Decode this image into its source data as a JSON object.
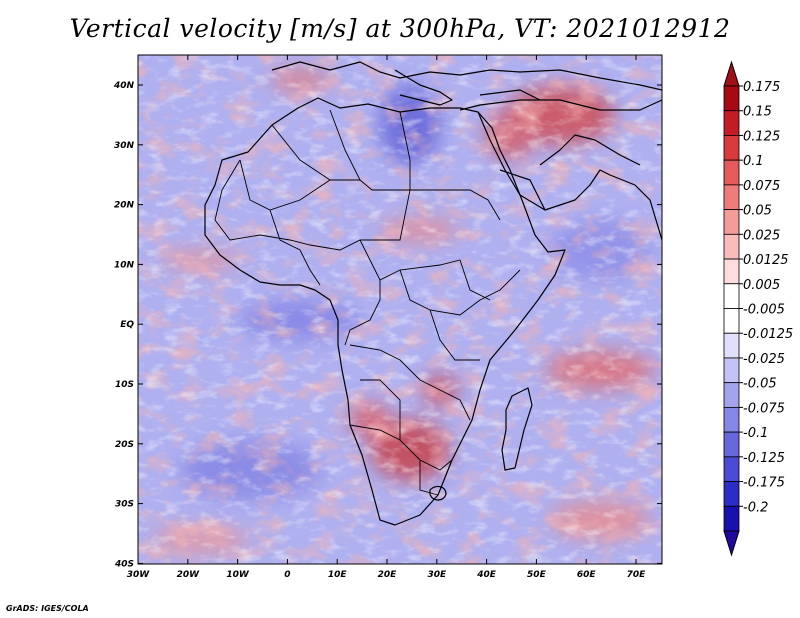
{
  "title": "Vertical velocity [m/s] at 300hPa, VT: 2021012912",
  "footer": "GrADS: IGES/COLA",
  "colors": {
    "ocean_base": "#aeb0f0",
    "land_base": "#c2c2f2",
    "positive_strong": "#b01e22",
    "positive_mid": "#e9787a",
    "negative_mid": "#8f8fe6",
    "neutral": "#ffffff",
    "coast": "#000000"
  },
  "axes": {
    "lon_labels": [
      "30W",
      "20W",
      "10W",
      "0",
      "10E",
      "20E",
      "30E",
      "40E",
      "50E",
      "60E",
      "70E"
    ],
    "lat_labels": [
      "40N",
      "30N",
      "20N",
      "10N",
      "EQ",
      "10S",
      "20S",
      "30S",
      "40S"
    ],
    "lon_range": [
      -30,
      75
    ],
    "lat_range": [
      -40,
      45
    ]
  },
  "colorbar": {
    "labels": [
      "0.175",
      "0.15",
      "0.125",
      "0.1",
      "0.075",
      "0.05",
      "0.025",
      "0.0125",
      "0.005",
      "-0.005",
      "-0.0125",
      "-0.025",
      "-0.05",
      "-0.075",
      "-0.1",
      "-0.125",
      "-0.175",
      "-0.2"
    ],
    "colors": [
      "#a80a14",
      "#c41c24",
      "#d83a3c",
      "#e55a5a",
      "#ee7c7a",
      "#f49c9a",
      "#f9bcba",
      "#fcdcdc",
      "#ffffff",
      "#ffffff",
      "#e0e0fa",
      "#c2c2f4",
      "#a4a4ee",
      "#8686e6",
      "#6868de",
      "#4a4ad4",
      "#2c2cc6",
      "#1a10b0"
    ],
    "top_arrow_color": "#a01018",
    "bottom_arrow_color": "#200a9e"
  }
}
